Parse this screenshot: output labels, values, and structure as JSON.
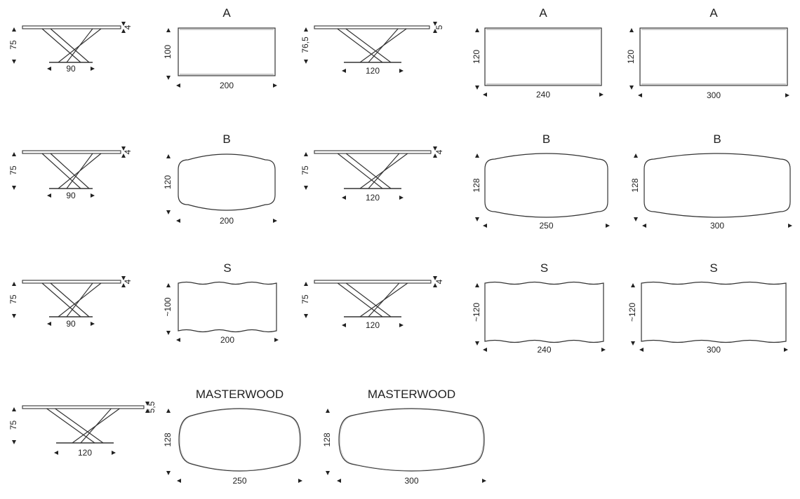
{
  "side_views": [
    {
      "row": "A",
      "height": "75",
      "width": "90",
      "thickness": "4"
    },
    {
      "row": "A",
      "height": "76,5",
      "width": "120",
      "thickness": "5"
    },
    {
      "row": "B",
      "height": "75",
      "width": "90",
      "thickness": "4"
    },
    {
      "row": "B",
      "height": "75",
      "width": "120",
      "thickness": "4"
    },
    {
      "row": "S",
      "height": "75",
      "width": "90",
      "thickness": "4"
    },
    {
      "row": "S",
      "height": "75",
      "width": "120",
      "thickness": "4"
    },
    {
      "row": "MASTERWOOD",
      "height": "75",
      "width": "120",
      "thickness": "5,5"
    }
  ],
  "top_views": [
    {
      "title": "A",
      "shape": "rectangle",
      "width": "200",
      "depth": "100"
    },
    {
      "title": "A",
      "shape": "rectangle",
      "width": "240",
      "depth": "120"
    },
    {
      "title": "A",
      "shape": "rectangle",
      "width": "300",
      "depth": "120"
    },
    {
      "title": "B",
      "shape": "barrel",
      "width": "200",
      "depth": "120"
    },
    {
      "title": "B",
      "shape": "barrel",
      "width": "250",
      "depth": "128"
    },
    {
      "title": "B",
      "shape": "barrel",
      "width": "300",
      "depth": "128"
    },
    {
      "title": "S",
      "shape": "wavy",
      "width": "200",
      "depth": "~100"
    },
    {
      "title": "S",
      "shape": "wavy",
      "width": "240",
      "depth": "~120"
    },
    {
      "title": "S",
      "shape": "wavy",
      "width": "300",
      "depth": "~120"
    },
    {
      "title": "MASTERWOOD",
      "shape": "masterwood",
      "width": "250",
      "depth": "128"
    },
    {
      "title": "MASTERWOOD",
      "shape": "masterwood",
      "width": "300",
      "depth": "128"
    }
  ]
}
